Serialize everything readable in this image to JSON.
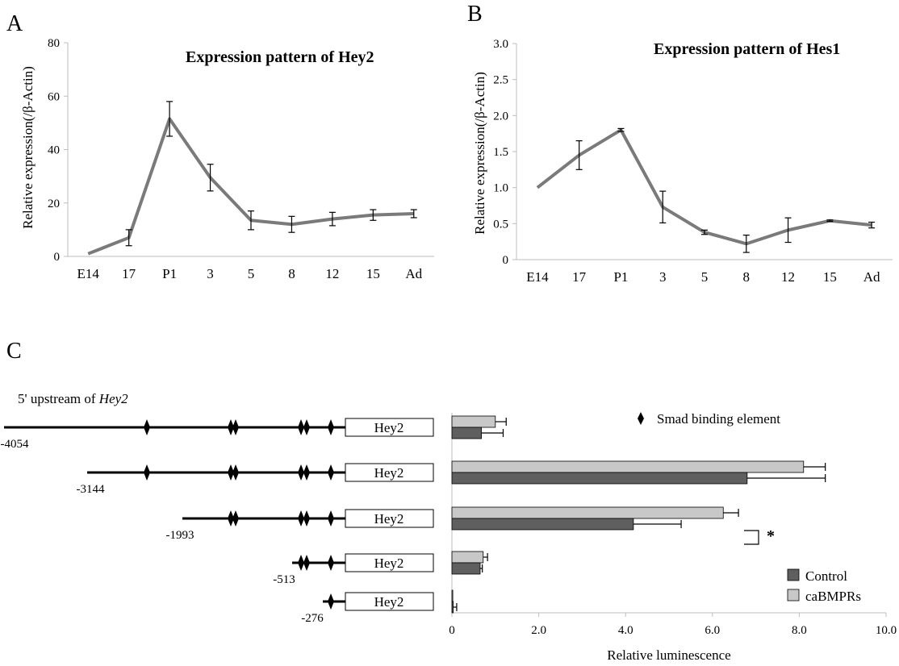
{
  "panels": {
    "a": "A",
    "b": "B",
    "c": "C"
  },
  "chart_data": [
    {
      "type": "line",
      "title": "Expression pattern of Hey2",
      "ylabel": "Relative expression(/β-Actin)",
      "categories": [
        "E14",
        "17",
        "P1",
        "3",
        "5",
        "8",
        "12",
        "15",
        "Ad"
      ],
      "ylim": [
        0,
        80
      ],
      "yticks": [
        "0",
        "20",
        "40",
        "60",
        "80"
      ],
      "series": [
        {
          "values": [
            1,
            7,
            51.5,
            29.5,
            13.5,
            12,
            14,
            15.5,
            16
          ],
          "error": [
            0,
            3,
            6.5,
            5,
            3.5,
            3,
            2.5,
            2,
            1.5
          ]
        }
      ],
      "color": "#7a7a7a"
    },
    {
      "type": "line",
      "title": "Expression pattern of Hes1",
      "ylabel": "Relative expression(/β-Actin)",
      "categories": [
        "E14",
        "17",
        "P1",
        "3",
        "5",
        "8",
        "12",
        "15",
        "Ad"
      ],
      "ylim": [
        0,
        3.0
      ],
      "yticks": [
        "0",
        "0.5",
        "1.0",
        "1.5",
        "2.0",
        "2.5",
        "3.0"
      ],
      "series": [
        {
          "values": [
            1.0,
            1.45,
            1.8,
            0.73,
            0.38,
            0.22,
            0.41,
            0.54,
            0.48
          ],
          "error": [
            0,
            0.2,
            0.02,
            0.22,
            0.03,
            0.12,
            0.17,
            0.01,
            0.04
          ]
        }
      ],
      "color": "#7a7a7a"
    },
    {
      "type": "bar",
      "orientation": "horizontal",
      "construct_title": "5' upstream of ",
      "construct_gene": "Hey2",
      "gene_box_label": "Hey2",
      "categories": [
        "-4054",
        "-3144",
        "-1993",
        "-513",
        "-276"
      ],
      "element_legend": "Smad binding element",
      "xlabel": "Relative luminescence",
      "xlim": [
        0,
        10.0
      ],
      "xticks": [
        "0",
        "2.0",
        "4.0",
        "6.0",
        "8.0",
        "10.0"
      ],
      "series": [
        {
          "name": "caBMPRs",
          "color": "#c8c8c8",
          "values": [
            1.0,
            8.1,
            6.25,
            0.72,
            0.02
          ],
          "error": [
            0.25,
            0.5,
            0.35,
            0.1,
            0.0
          ]
        },
        {
          "name": "Control",
          "color": "#5f5f5f",
          "values": [
            0.68,
            6.8,
            4.18,
            0.65,
            0.03
          ],
          "error": [
            0.5,
            1.8,
            1.1,
            0.05,
            0.08
          ]
        }
      ],
      "legend_order": [
        "Control",
        "caBMPRs"
      ],
      "significance": "*"
    }
  ]
}
